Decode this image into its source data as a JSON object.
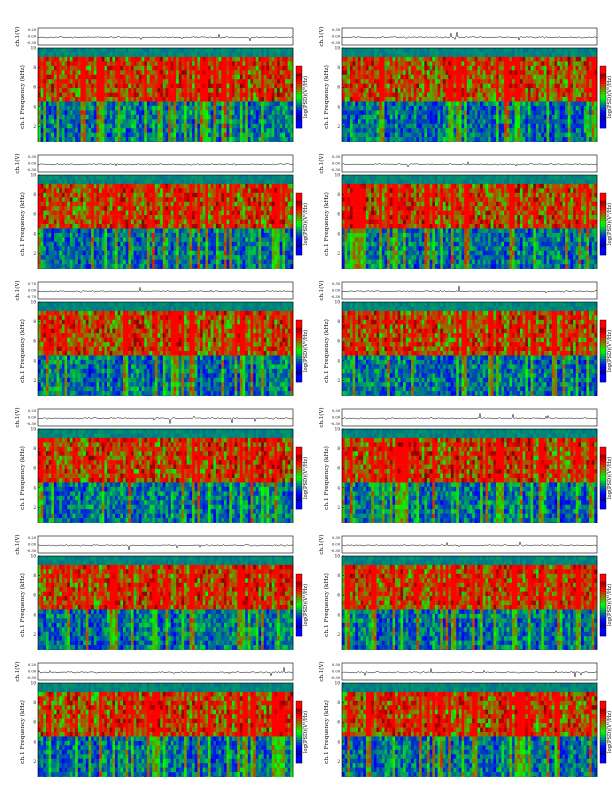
{
  "chart_data": [
    {
      "type": "heatmap",
      "title": "VLF Spectra",
      "date": "Oct09 2011",
      "station": "station=KAG",
      "start": "start UT =1820:0",
      "ylabel_top": "ch.1(V)",
      "ylabel": "ch.1 Frequency (kHz)",
      "xlabel": "Time (sec)",
      "colorbar_label": "log(PSD)(V²/Hz)",
      "xticks": [
        "0",
        "10",
        "20",
        "30",
        "40",
        "50",
        "60",
        "70",
        "80",
        "90",
        "100",
        "110",
        "120"
      ],
      "yticks": [
        "0",
        "2",
        "4",
        "6",
        "8",
        "10"
      ],
      "top_yticks": [
        "0.20",
        "0.00",
        "-0.30"
      ],
      "xlim": [
        0,
        120
      ],
      "ylim": [
        0,
        10
      ]
    },
    {
      "type": "heatmap",
      "title": "VLF Spectra",
      "date": "Oct09 2011",
      "station": "station=KAG",
      "start": "start UT =1850:0",
      "ylabel_top": "ch.1(V)",
      "ylabel": "ch.1 Frequency (kHz)",
      "xlabel": "Time (sec)",
      "colorbar_label": "log(PSD)(V²/Hz)",
      "xticks": [
        "0",
        "10",
        "20",
        "30",
        "40",
        "50",
        "60",
        "70",
        "80",
        "90",
        "100",
        "110",
        "120"
      ],
      "yticks": [
        "0",
        "2",
        "4",
        "6",
        "8",
        "10"
      ],
      "top_yticks": [
        "0.30",
        "0.00",
        "-0.30"
      ],
      "xlim": [
        0,
        120
      ],
      "ylim": [
        0,
        10
      ]
    },
    {
      "type": "heatmap",
      "title": "VLF Spectra",
      "date": "Oct09 2011",
      "station": "station=KAG",
      "start": "start UT =1920:0",
      "ylabel_top": "ch.1(V)",
      "ylabel": "ch.1 Frequency (kHz)",
      "xlabel": "Time (sec)",
      "colorbar_label": "log(PSD)(V²/Hz)",
      "xticks": [
        "0",
        "10",
        "20",
        "30",
        "40",
        "50",
        "60",
        "70",
        "80",
        "90",
        "100",
        "110",
        "120"
      ],
      "yticks": [
        "0",
        "2",
        "4",
        "6",
        "8",
        "10"
      ],
      "top_yticks": [
        "0.30",
        "0.00",
        "-0.30"
      ],
      "xlim": [
        0,
        120
      ],
      "ylim": [
        0,
        10
      ]
    },
    {
      "type": "heatmap",
      "title": "VLF Spectra",
      "date": "Oct09 2011",
      "station": "station=KAG",
      "start": "start UT =1950:0",
      "ylabel_top": "ch.1(V)",
      "ylabel": "ch.1 Frequency (kHz)",
      "xlabel": "Time (sec)",
      "colorbar_label": "log(PSD)(V²/Hz)",
      "xticks": [
        "0",
        "10",
        "20",
        "30",
        "40",
        "50",
        "60",
        "70",
        "80",
        "90",
        "100",
        "110",
        "120"
      ],
      "yticks": [
        "0",
        "2",
        "4",
        "6",
        "8",
        "10"
      ],
      "top_yticks": [
        "0.30",
        "0.00",
        "-0.30"
      ],
      "xlim": [
        0,
        120
      ],
      "ylim": [
        0,
        10
      ]
    },
    {
      "type": "heatmap",
      "title": "VLF Spectra",
      "date": "Oct09 2011",
      "station": "station=KAG",
      "start": "start UT =2020:0",
      "ylabel_top": "ch.1(V)",
      "ylabel": "ch.1 Frequency (kHz)",
      "xlabel": "Time (sec)",
      "colorbar_label": "log(PSD)(V²/Hz)",
      "xticks": [
        "0",
        "10",
        "20",
        "30",
        "40",
        "50",
        "60",
        "70",
        "80",
        "90",
        "100",
        "110",
        "120"
      ],
      "yticks": [
        "0",
        "2",
        "4",
        "6",
        "8",
        "10"
      ],
      "top_yticks": [
        "0.70",
        "0.00",
        "-0.70"
      ],
      "xlim": [
        0,
        120
      ],
      "ylim": [
        0,
        10
      ]
    },
    {
      "type": "heatmap",
      "title": "VLF Spectra",
      "date": "Oct09 2011",
      "station": "station=KAG",
      "start": "start UT =2050:0",
      "ylabel_top": "ch.1(V)",
      "ylabel": "ch.1 Frequency (kHz)",
      "xlabel": "Time (sec)",
      "colorbar_label": "log(PSD)(V²/Hz)",
      "xticks": [
        "0",
        "10",
        "20",
        "30",
        "40",
        "50",
        "60",
        "70",
        "80",
        "90",
        "100",
        "110",
        "120"
      ],
      "yticks": [
        "0",
        "2",
        "4",
        "6",
        "8",
        "10"
      ],
      "top_yticks": [
        "0.30",
        "0.00",
        "-0.30"
      ],
      "xlim": [
        0,
        120
      ],
      "ylim": [
        0,
        10
      ]
    },
    {
      "type": "heatmap",
      "title": "VLF Spectra",
      "date": "Oct09 2011",
      "station": "station=KAG",
      "start": "start UT =2120:0",
      "ylabel_top": "ch.1(V)",
      "ylabel": "ch.1 Frequency (kHz)",
      "xlabel": "Time (sec)",
      "colorbar_label": "log(PSD)(V²/Hz)",
      "xticks": [
        "0",
        "10",
        "20",
        "30",
        "40",
        "50",
        "60",
        "70",
        "80",
        "90",
        "100",
        "110",
        "120"
      ],
      "yticks": [
        "0",
        "2",
        "4",
        "6",
        "8",
        "10"
      ],
      "top_yticks": [
        "0.20",
        "0.00",
        "-0.30"
      ],
      "xlim": [
        0,
        120
      ],
      "ylim": [
        0,
        10
      ]
    },
    {
      "type": "heatmap",
      "title": "VLF Spectra",
      "date": "Oct09 2011",
      "station": "station=KAG",
      "start": "start UT =2150:0",
      "ylabel_top": "ch.1(V)",
      "ylabel": "ch.1 Frequency (kHz)",
      "xlabel": "Time (sec)",
      "colorbar_label": "log(PSD)(V²/Hz)",
      "xticks": [
        "0",
        "10",
        "20",
        "30",
        "40",
        "50",
        "60",
        "70",
        "80",
        "90",
        "100",
        "110",
        "120"
      ],
      "yticks": [
        "0",
        "2",
        "4",
        "6",
        "8",
        "10"
      ],
      "top_yticks": [
        "0.30",
        "0.00",
        "-0.30"
      ],
      "xlim": [
        0,
        120
      ],
      "ylim": [
        0,
        10
      ]
    },
    {
      "type": "heatmap",
      "title": "VLF Spectra",
      "date": "Oct09 2011",
      "station": "station=KAG",
      "start": "start UT =2220:0",
      "ylabel_top": "ch.1(V)",
      "ylabel": "ch.1 Frequency (kHz)",
      "xlabel": "Time (sec)",
      "colorbar_label": "log(PSD)(V²/Hz)",
      "xticks": [
        "0",
        "10",
        "20",
        "30",
        "40",
        "50",
        "60",
        "70",
        "80",
        "90",
        "100",
        "110",
        "120"
      ],
      "yticks": [
        "0",
        "2",
        "4",
        "6",
        "8",
        "10"
      ],
      "top_yticks": [
        "0.20",
        "0.00",
        "-0.30"
      ],
      "xlim": [
        0,
        120
      ],
      "ylim": [
        0,
        10
      ]
    },
    {
      "type": "heatmap",
      "title": "VLF Spectra",
      "date": "Oct09 2011",
      "station": "station=KAG",
      "start": "start UT =2250:0",
      "ylabel_top": "ch.1(V)",
      "ylabel": "ch.1 Frequency (kHz)",
      "xlabel": "Time (sec)",
      "colorbar_label": "log(PSD)(V²/Hz)",
      "xticks": [
        "0",
        "10",
        "20",
        "30",
        "40",
        "50",
        "60",
        "70",
        "80",
        "90",
        "100",
        "110",
        "120"
      ],
      "yticks": [
        "0",
        "2",
        "4",
        "6",
        "8",
        "10"
      ],
      "top_yticks": [
        "0.30",
        "0.00",
        "-0.30"
      ],
      "xlim": [
        0,
        120
      ],
      "ylim": [
        0,
        10
      ]
    },
    {
      "type": "heatmap",
      "title": "VLF Spectra",
      "date": "Oct09 2011",
      "station": "station=KAG",
      "start": "start UT =2320:0",
      "ylabel_top": "ch.1(V)",
      "ylabel": "ch.1 Frequency (kHz)",
      "xlabel": "Time (sec)",
      "colorbar_label": "log(PSD)(V²/Hz)",
      "xticks": [
        "0",
        "10",
        "20",
        "30",
        "40",
        "50",
        "60",
        "70",
        "80",
        "90",
        "100",
        "110",
        "120"
      ],
      "yticks": [
        "0",
        "2",
        "4",
        "6",
        "8",
        "10"
      ],
      "top_yticks": [
        "0.20",
        "0.00",
        "-0.30"
      ],
      "xlim": [
        0,
        120
      ],
      "ylim": [
        0,
        10
      ]
    },
    {
      "type": "heatmap",
      "title": "VLF Spectra",
      "date": "Oct09 2011",
      "station": "station=KAG",
      "start": "start UT =2350:0",
      "ylabel_top": "ch.1(V)",
      "ylabel": "ch.1 Frequency (kHz)",
      "xlabel": "Time (sec)",
      "colorbar_label": "log(PSD)(V²/Hz)",
      "xticks": [
        "0",
        "10",
        "20",
        "30",
        "40",
        "50",
        "60",
        "70",
        "80",
        "90",
        "100",
        "110",
        "120"
      ],
      "yticks": [
        "0",
        "2",
        "4",
        "6",
        "8",
        "10"
      ],
      "top_yticks": [
        "0.30",
        "0.00",
        "-0.30"
      ],
      "xlim": [
        0,
        120
      ],
      "ylim": [
        0,
        10
      ]
    }
  ],
  "colors": {
    "low": "#0000c8",
    "mid_low": "#00ffff",
    "mid": "#33cc33",
    "mid_high": "#ffff00",
    "high": "#ff0000",
    "top_band": "#00e0ff"
  }
}
